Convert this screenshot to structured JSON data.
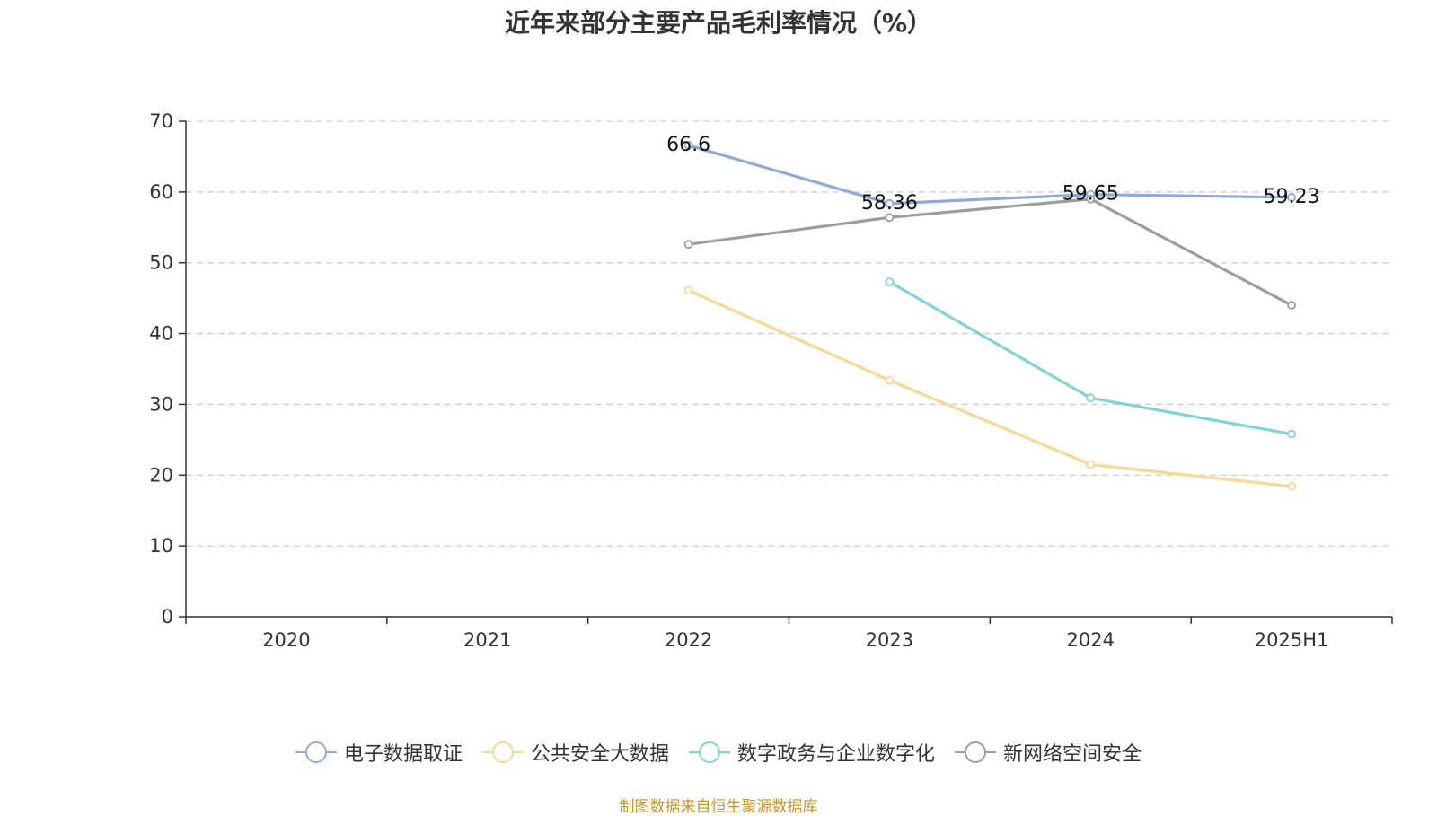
{
  "chart_data": {
    "type": "line",
    "title": "近年来部分主要产品毛利率情况（%）",
    "categories": [
      "2020",
      "2021",
      "2022",
      "2023",
      "2024",
      "2025H1"
    ],
    "ylim": [
      0,
      70
    ],
    "yticks": [
      "0",
      "10",
      "20",
      "30",
      "40",
      "50",
      "60",
      "70"
    ],
    "grid": true,
    "legend_position": "bottom",
    "series": [
      {
        "name": "电子数据取证",
        "color": "#8eaad6",
        "values": [
          null,
          null,
          66.6,
          58.36,
          59.65,
          59.23
        ],
        "labels": [
          "",
          "",
          "66.6",
          "58.36",
          "59.65",
          "59.23"
        ]
      },
      {
        "name": "公共安全大数据",
        "color": "#f9d896",
        "values": [
          null,
          null,
          46.1,
          33.4,
          21.5,
          18.4
        ],
        "labels": [
          "",
          "",
          "",
          "",
          "",
          ""
        ]
      },
      {
        "name": "数字政务与企业数字化",
        "color": "#7fd4d4",
        "values": [
          null,
          null,
          null,
          47.3,
          30.9,
          25.8
        ],
        "labels": [
          "",
          "",
          "",
          "",
          "",
          ""
        ]
      },
      {
        "name": "新网络空间安全",
        "color": "#9d9d9d",
        "values": [
          null,
          null,
          52.6,
          56.4,
          59.0,
          44.0
        ],
        "labels": [
          "",
          "",
          "",
          "",
          "",
          ""
        ]
      }
    ],
    "source": "制图数据来自恒生聚源数据库"
  }
}
